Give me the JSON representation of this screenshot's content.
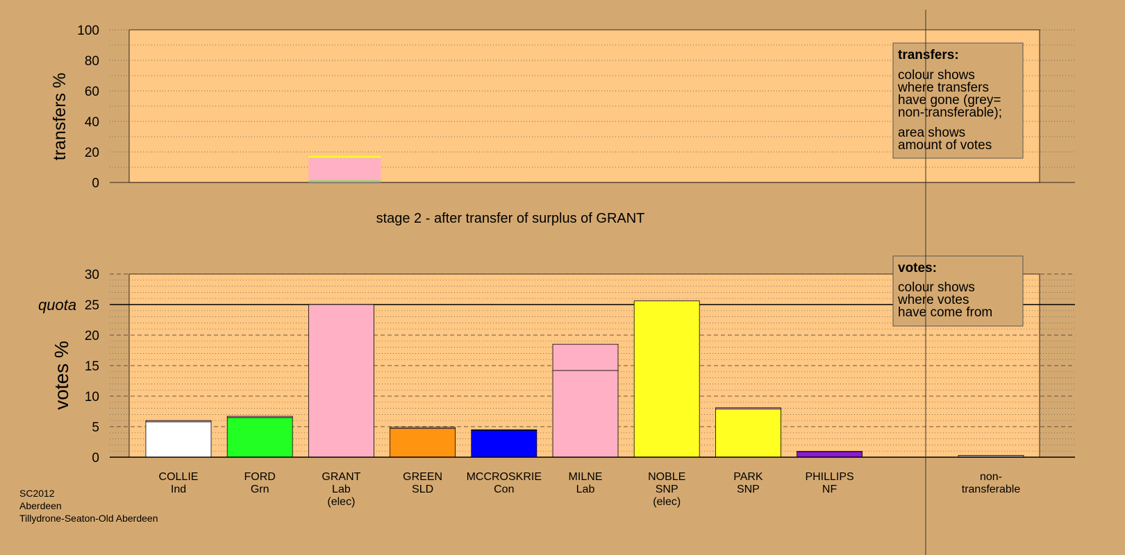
{
  "chart_data": [
    {
      "type": "bar",
      "ylabel": "transfers %",
      "ylim": [
        0,
        100
      ],
      "yticks": [
        0,
        20,
        40,
        60,
        80,
        100
      ],
      "grid": true,
      "legend": {
        "placement": "top-right",
        "title": "transfers:",
        "lines_a": [
          "colour shows",
          "where transfers",
          "have gone (grey=",
          "non-transferable);"
        ],
        "lines_b": [
          "area shows",
          "amount of votes"
        ]
      },
      "transfers": [
        {
          "category": "GRANT",
          "band_width_share": 0.3,
          "segments": [
            {
              "label": "non-transferable",
              "value": 0.6,
              "color": "#b0b0b0"
            },
            {
              "label": "FORD",
              "value": 0.6,
              "color": "#22ff22"
            },
            {
              "label": "MILNE",
              "value": 15.0,
              "color": "#ffb0c4"
            },
            {
              "label": "PARK",
              "value": 0.6,
              "color": "#ffff22"
            },
            {
              "label": "NOBLE",
              "value": 0.5,
              "color": "#ffff22"
            }
          ]
        }
      ]
    },
    {
      "type": "bar",
      "ylabel": "votes %",
      "ylim": [
        0,
        30
      ],
      "yticks": [
        0,
        5,
        10,
        15,
        20,
        25,
        30
      ],
      "quota_label": "quota",
      "quota": 25,
      "grid": true,
      "legend": {
        "placement": "top-right",
        "title": "votes:",
        "lines": [
          "colour shows",
          "where votes",
          "have come from"
        ]
      },
      "categories": [
        "COLLIE",
        "FORD",
        "GRANT",
        "GREEN",
        "MCCROSKRIE",
        "MILNE",
        "NOBLE",
        "PARK",
        "PHILLIPS",
        "non-transferable"
      ],
      "labels": [
        [
          "COLLIE",
          "Ind"
        ],
        [
          "FORD",
          "Grn"
        ],
        [
          "GRANT",
          "Lab",
          "(elec)"
        ],
        [
          "GREEN",
          "SLD"
        ],
        [
          "MCCROSKRIE",
          "Con"
        ],
        [
          "MILNE",
          "Lab"
        ],
        [
          "NOBLE",
          "SNP",
          "(elec)"
        ],
        [
          "PARK",
          "SNP"
        ],
        [
          "PHILLIPS",
          "NF"
        ],
        [
          "non-",
          "transferable"
        ]
      ],
      "bars": [
        {
          "name": "COLLIE",
          "segments": [
            {
              "value": 5.8,
              "color": "#ffffff"
            },
            {
              "value": 0.2,
              "color": "#ffb0c4"
            }
          ]
        },
        {
          "name": "FORD",
          "segments": [
            {
              "value": 6.5,
              "color": "#22ff22"
            },
            {
              "value": 0.2,
              "color": "#ffb0c4"
            }
          ]
        },
        {
          "name": "GRANT",
          "segments": [
            {
              "value": 25.0,
              "color": "#ffb0c4"
            }
          ]
        },
        {
          "name": "GREEN",
          "segments": [
            {
              "value": 4.7,
              "color": "#ff9410"
            },
            {
              "value": 0.2,
              "color": "#ffb0c4"
            }
          ]
        },
        {
          "name": "MCCROSKRIE",
          "segments": [
            {
              "value": 4.4,
              "color": "#0000ff"
            },
            {
              "value": 0.1,
              "color": "#ffb0c4"
            }
          ]
        },
        {
          "name": "MILNE",
          "segments": [
            {
              "value": 14.2,
              "color": "#ffb0c4"
            },
            {
              "value": 4.3,
              "color": "#ffb0c4"
            }
          ]
        },
        {
          "name": "NOBLE",
          "segments": [
            {
              "value": 25.6,
              "color": "#ffff22"
            }
          ]
        },
        {
          "name": "PARK",
          "segments": [
            {
              "value": 7.9,
              "color": "#ffff22"
            },
            {
              "value": 0.2,
              "color": "#ffb0c4"
            }
          ]
        },
        {
          "name": "PHILLIPS",
          "segments": [
            {
              "value": 0.9,
              "color": "#8a1ad4"
            },
            {
              "value": 0.05,
              "color": "#ffb0c4"
            }
          ]
        },
        {
          "name": "non-transferable",
          "segments": [
            {
              "value": 0.3,
              "color": "#b0b0b0"
            }
          ]
        }
      ]
    }
  ],
  "stage_title": "stage 2 - after transfer of surplus of GRANT",
  "footer_lines": [
    "SC2012",
    "Aberdeen",
    "Tillydrone-Seaton-Old Aberdeen"
  ],
  "colors": {
    "background": "#d4a971",
    "plot_fill": "#ffc884",
    "legend_fill": "#d4a971"
  }
}
